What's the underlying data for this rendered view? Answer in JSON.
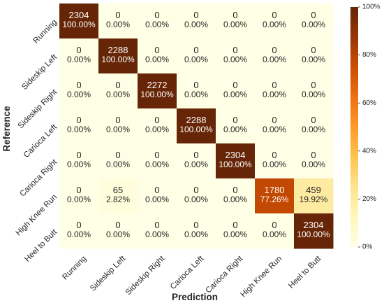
{
  "chart_data": {
    "type": "heatmap",
    "xlabel": "Prediction",
    "ylabel": "Reference",
    "x_categories": [
      "Running",
      "Sideskip Left",
      "Sideskip Right",
      "Carioca Left",
      "Carioca Right",
      "High Knee Run",
      "Heel to Butt"
    ],
    "y_categories": [
      "Running",
      "Sideskip Left",
      "Sideskip Right",
      "Carioca Left",
      "Carioca Right",
      "High Knee Run",
      "Heel to Butt"
    ],
    "counts": [
      [
        2304,
        0,
        0,
        0,
        0,
        0,
        0
      ],
      [
        0,
        2288,
        0,
        0,
        0,
        0,
        0
      ],
      [
        0,
        0,
        2272,
        0,
        0,
        0,
        0
      ],
      [
        0,
        0,
        0,
        2288,
        0,
        0,
        0
      ],
      [
        0,
        0,
        0,
        0,
        2304,
        0,
        0
      ],
      [
        0,
        65,
        0,
        0,
        0,
        1780,
        459
      ],
      [
        0,
        0,
        0,
        0,
        0,
        0,
        2304
      ]
    ],
    "percent_labels": [
      [
        "100.00%",
        "0.00%",
        "0.00%",
        "0.00%",
        "0.00%",
        "0.00%",
        "0.00%"
      ],
      [
        "0.00%",
        "100.00%",
        "0.00%",
        "0.00%",
        "0.00%",
        "0.00%",
        "0.00%"
      ],
      [
        "0.00%",
        "0.00%",
        "100.00%",
        "0.00%",
        "0.00%",
        "0.00%",
        "0.00%"
      ],
      [
        "0.00%",
        "0.00%",
        "0.00%",
        "100.00%",
        "0.00%",
        "0.00%",
        "0.00%"
      ],
      [
        "0.00%",
        "0.00%",
        "0.00%",
        "0.00%",
        "100.00%",
        "0.00%",
        "0.00%"
      ],
      [
        "0.00%",
        "2.82%",
        "0.00%",
        "0.00%",
        "0.00%",
        "77.26%",
        "19.92%"
      ],
      [
        "0.00%",
        "0.00%",
        "0.00%",
        "0.00%",
        "0.00%",
        "0.00%",
        "100.00%"
      ]
    ],
    "colorbar": {
      "range": [
        0,
        100
      ],
      "ticks": [
        0,
        20,
        40,
        60,
        80,
        100
      ],
      "tick_labels": [
        "0%",
        "20%",
        "40%",
        "60%",
        "80%",
        "100%"
      ],
      "colormap": "YlOrBr",
      "colors": [
        "#ffffe5",
        "#fff7bc",
        "#fee391",
        "#fec44f",
        "#fe9929",
        "#ec7014",
        "#cc4c02",
        "#993404",
        "#662506"
      ]
    },
    "grid": false,
    "legend": "colorbar-right"
  }
}
